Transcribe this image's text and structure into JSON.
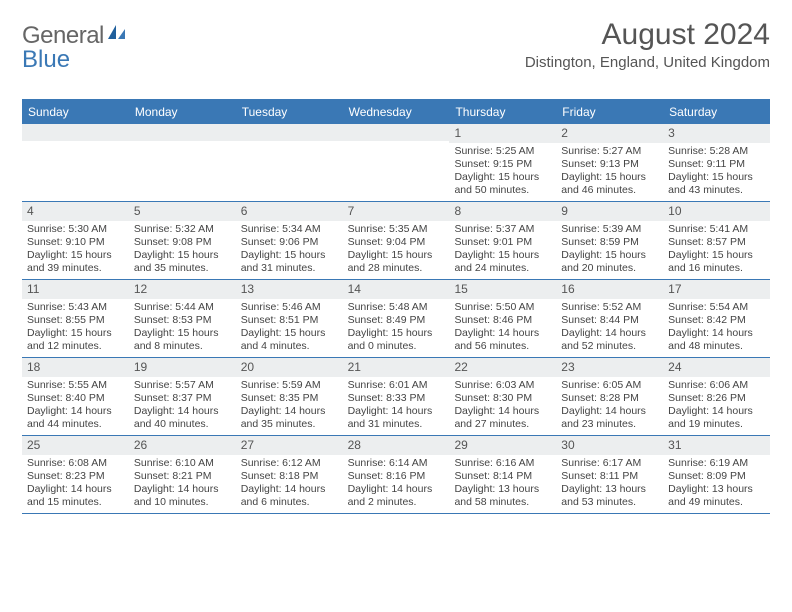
{
  "brand": {
    "part1": "General",
    "part2": "Blue"
  },
  "title": "August 2024",
  "location": "Distington, England, United Kingdom",
  "colors": {
    "header_bg": "#3a78b5",
    "daynum_bg": "#eceeef",
    "text": "#555555"
  },
  "weekdays": [
    "Sunday",
    "Monday",
    "Tuesday",
    "Wednesday",
    "Thursday",
    "Friday",
    "Saturday"
  ],
  "weeks": [
    [
      {
        "n": "",
        "sr": "",
        "ss": "",
        "dl": ""
      },
      {
        "n": "",
        "sr": "",
        "ss": "",
        "dl": ""
      },
      {
        "n": "",
        "sr": "",
        "ss": "",
        "dl": ""
      },
      {
        "n": "",
        "sr": "",
        "ss": "",
        "dl": ""
      },
      {
        "n": "1",
        "sr": "Sunrise: 5:25 AM",
        "ss": "Sunset: 9:15 PM",
        "dl": "Daylight: 15 hours and 50 minutes."
      },
      {
        "n": "2",
        "sr": "Sunrise: 5:27 AM",
        "ss": "Sunset: 9:13 PM",
        "dl": "Daylight: 15 hours and 46 minutes."
      },
      {
        "n": "3",
        "sr": "Sunrise: 5:28 AM",
        "ss": "Sunset: 9:11 PM",
        "dl": "Daylight: 15 hours and 43 minutes."
      }
    ],
    [
      {
        "n": "4",
        "sr": "Sunrise: 5:30 AM",
        "ss": "Sunset: 9:10 PM",
        "dl": "Daylight: 15 hours and 39 minutes."
      },
      {
        "n": "5",
        "sr": "Sunrise: 5:32 AM",
        "ss": "Sunset: 9:08 PM",
        "dl": "Daylight: 15 hours and 35 minutes."
      },
      {
        "n": "6",
        "sr": "Sunrise: 5:34 AM",
        "ss": "Sunset: 9:06 PM",
        "dl": "Daylight: 15 hours and 31 minutes."
      },
      {
        "n": "7",
        "sr": "Sunrise: 5:35 AM",
        "ss": "Sunset: 9:04 PM",
        "dl": "Daylight: 15 hours and 28 minutes."
      },
      {
        "n": "8",
        "sr": "Sunrise: 5:37 AM",
        "ss": "Sunset: 9:01 PM",
        "dl": "Daylight: 15 hours and 24 minutes."
      },
      {
        "n": "9",
        "sr": "Sunrise: 5:39 AM",
        "ss": "Sunset: 8:59 PM",
        "dl": "Daylight: 15 hours and 20 minutes."
      },
      {
        "n": "10",
        "sr": "Sunrise: 5:41 AM",
        "ss": "Sunset: 8:57 PM",
        "dl": "Daylight: 15 hours and 16 minutes."
      }
    ],
    [
      {
        "n": "11",
        "sr": "Sunrise: 5:43 AM",
        "ss": "Sunset: 8:55 PM",
        "dl": "Daylight: 15 hours and 12 minutes."
      },
      {
        "n": "12",
        "sr": "Sunrise: 5:44 AM",
        "ss": "Sunset: 8:53 PM",
        "dl": "Daylight: 15 hours and 8 minutes."
      },
      {
        "n": "13",
        "sr": "Sunrise: 5:46 AM",
        "ss": "Sunset: 8:51 PM",
        "dl": "Daylight: 15 hours and 4 minutes."
      },
      {
        "n": "14",
        "sr": "Sunrise: 5:48 AM",
        "ss": "Sunset: 8:49 PM",
        "dl": "Daylight: 15 hours and 0 minutes."
      },
      {
        "n": "15",
        "sr": "Sunrise: 5:50 AM",
        "ss": "Sunset: 8:46 PM",
        "dl": "Daylight: 14 hours and 56 minutes."
      },
      {
        "n": "16",
        "sr": "Sunrise: 5:52 AM",
        "ss": "Sunset: 8:44 PM",
        "dl": "Daylight: 14 hours and 52 minutes."
      },
      {
        "n": "17",
        "sr": "Sunrise: 5:54 AM",
        "ss": "Sunset: 8:42 PM",
        "dl": "Daylight: 14 hours and 48 minutes."
      }
    ],
    [
      {
        "n": "18",
        "sr": "Sunrise: 5:55 AM",
        "ss": "Sunset: 8:40 PM",
        "dl": "Daylight: 14 hours and 44 minutes."
      },
      {
        "n": "19",
        "sr": "Sunrise: 5:57 AM",
        "ss": "Sunset: 8:37 PM",
        "dl": "Daylight: 14 hours and 40 minutes."
      },
      {
        "n": "20",
        "sr": "Sunrise: 5:59 AM",
        "ss": "Sunset: 8:35 PM",
        "dl": "Daylight: 14 hours and 35 minutes."
      },
      {
        "n": "21",
        "sr": "Sunrise: 6:01 AM",
        "ss": "Sunset: 8:33 PM",
        "dl": "Daylight: 14 hours and 31 minutes."
      },
      {
        "n": "22",
        "sr": "Sunrise: 6:03 AM",
        "ss": "Sunset: 8:30 PM",
        "dl": "Daylight: 14 hours and 27 minutes."
      },
      {
        "n": "23",
        "sr": "Sunrise: 6:05 AM",
        "ss": "Sunset: 8:28 PM",
        "dl": "Daylight: 14 hours and 23 minutes."
      },
      {
        "n": "24",
        "sr": "Sunrise: 6:06 AM",
        "ss": "Sunset: 8:26 PM",
        "dl": "Daylight: 14 hours and 19 minutes."
      }
    ],
    [
      {
        "n": "25",
        "sr": "Sunrise: 6:08 AM",
        "ss": "Sunset: 8:23 PM",
        "dl": "Daylight: 14 hours and 15 minutes."
      },
      {
        "n": "26",
        "sr": "Sunrise: 6:10 AM",
        "ss": "Sunset: 8:21 PM",
        "dl": "Daylight: 14 hours and 10 minutes."
      },
      {
        "n": "27",
        "sr": "Sunrise: 6:12 AM",
        "ss": "Sunset: 8:18 PM",
        "dl": "Daylight: 14 hours and 6 minutes."
      },
      {
        "n": "28",
        "sr": "Sunrise: 6:14 AM",
        "ss": "Sunset: 8:16 PM",
        "dl": "Daylight: 14 hours and 2 minutes."
      },
      {
        "n": "29",
        "sr": "Sunrise: 6:16 AM",
        "ss": "Sunset: 8:14 PM",
        "dl": "Daylight: 13 hours and 58 minutes."
      },
      {
        "n": "30",
        "sr": "Sunrise: 6:17 AM",
        "ss": "Sunset: 8:11 PM",
        "dl": "Daylight: 13 hours and 53 minutes."
      },
      {
        "n": "31",
        "sr": "Sunrise: 6:19 AM",
        "ss": "Sunset: 8:09 PM",
        "dl": "Daylight: 13 hours and 49 minutes."
      }
    ]
  ]
}
